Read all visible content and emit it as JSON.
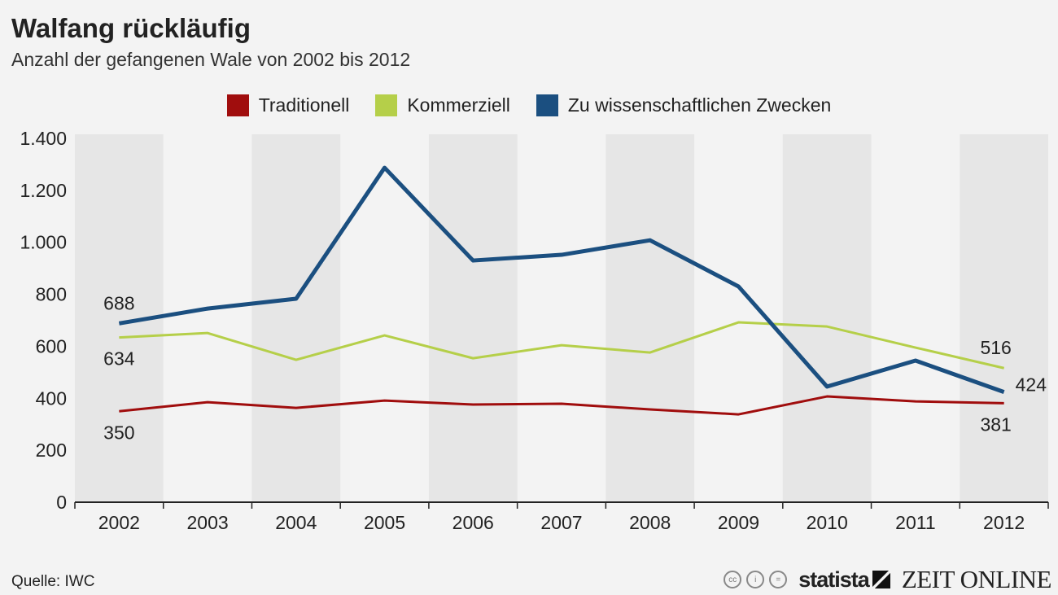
{
  "title": "Walfang rückläufig",
  "subtitle": "Anzahl der gefangenen Wale von 2002 bis 2012",
  "source": "Quelle: IWC",
  "footer": {
    "cc_icons": [
      "cc-icon",
      "by-icon",
      "nd-icon"
    ],
    "statista": "statista",
    "zeit": "ZEIT ONLINE"
  },
  "colors": {
    "traditionell": "#a00d0d",
    "kommerziell": "#b5cf49",
    "wissenschaftlich": "#1b4f80",
    "band": "#e6e6e6",
    "background": "#f3f3f3"
  },
  "chart_data": {
    "type": "line",
    "title": "Walfang rückläufig",
    "categories": [
      "2002",
      "2003",
      "2004",
      "2005",
      "2006",
      "2007",
      "2008",
      "2009",
      "2010",
      "2011",
      "2012"
    ],
    "ylim": [
      0,
      1400
    ],
    "yticks": [
      0,
      200,
      400,
      600,
      800,
      1000,
      1200,
      1400
    ],
    "ytick_labels": [
      "0",
      "200",
      "400",
      "600",
      "800",
      "1.000",
      "1.200",
      "1.400"
    ],
    "legend_position": "top",
    "series": [
      {
        "name": "Traditionell",
        "color": "#a00d0d",
        "values": [
          350,
          385,
          363,
          391,
          376,
          379,
          357,
          338,
          407,
          388,
          381
        ]
      },
      {
        "name": "Kommerziell",
        "color": "#b5cf49",
        "values": [
          634,
          651,
          548,
          642,
          554,
          604,
          576,
          692,
          676,
          595,
          516
        ]
      },
      {
        "name": "Zu wissenschaftlichen Zwecken",
        "color": "#1b4f80",
        "values": [
          688,
          745,
          783,
          1287,
          930,
          952,
          1008,
          830,
          445,
          545,
          424
        ]
      }
    ],
    "annotations": [
      {
        "series": 2,
        "index": 0,
        "text": "688",
        "pos": "above"
      },
      {
        "series": 1,
        "index": 0,
        "text": "634",
        "pos": "below"
      },
      {
        "series": 0,
        "index": 0,
        "text": "350",
        "pos": "below"
      },
      {
        "series": 1,
        "index": 10,
        "text": "516",
        "pos": "above"
      },
      {
        "series": 2,
        "index": 10,
        "text": "424",
        "pos": "right"
      },
      {
        "series": 0,
        "index": 10,
        "text": "381",
        "pos": "below"
      }
    ]
  }
}
